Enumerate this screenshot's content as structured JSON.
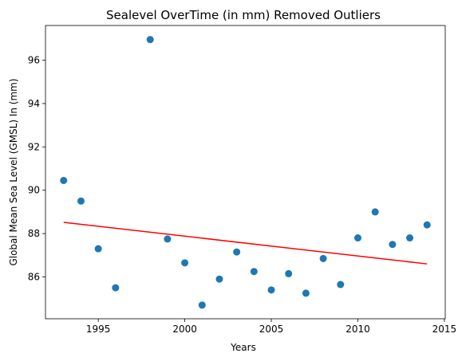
{
  "chart_data": {
    "type": "scatter",
    "title": "Sealevel OverTime (in mm) Removed Outliers",
    "xlabel": "Years",
    "ylabel": "Global Mean Sea Level (GMSL) In (mm)",
    "xlim": [
      1991.95,
      2015.05
    ],
    "ylim": [
      84.07,
      97.6
    ],
    "xticks": [
      1995,
      2000,
      2005,
      2010,
      2015
    ],
    "yticks": [
      86,
      88,
      90,
      92,
      94,
      96
    ],
    "grid": false,
    "series": [
      {
        "kind": "scatter",
        "color": "#1f77b4",
        "x": [
          1993,
          1994,
          1995,
          1996,
          1998,
          1999,
          2000,
          2001,
          2002,
          2003,
          2004,
          2005,
          2006,
          2007,
          2008,
          2009,
          2010,
          2011,
          2012,
          2013,
          2014
        ],
        "y": [
          90.45,
          89.5,
          87.3,
          85.5,
          96.95,
          87.75,
          86.65,
          84.7,
          85.9,
          87.15,
          86.25,
          85.4,
          86.15,
          85.25,
          86.85,
          85.65,
          87.8,
          89.0,
          87.5,
          87.8,
          88.4
        ]
      },
      {
        "kind": "line",
        "color": "#ff0000",
        "x": [
          1993,
          2014
        ],
        "y": [
          88.52,
          86.6
        ]
      }
    ]
  }
}
